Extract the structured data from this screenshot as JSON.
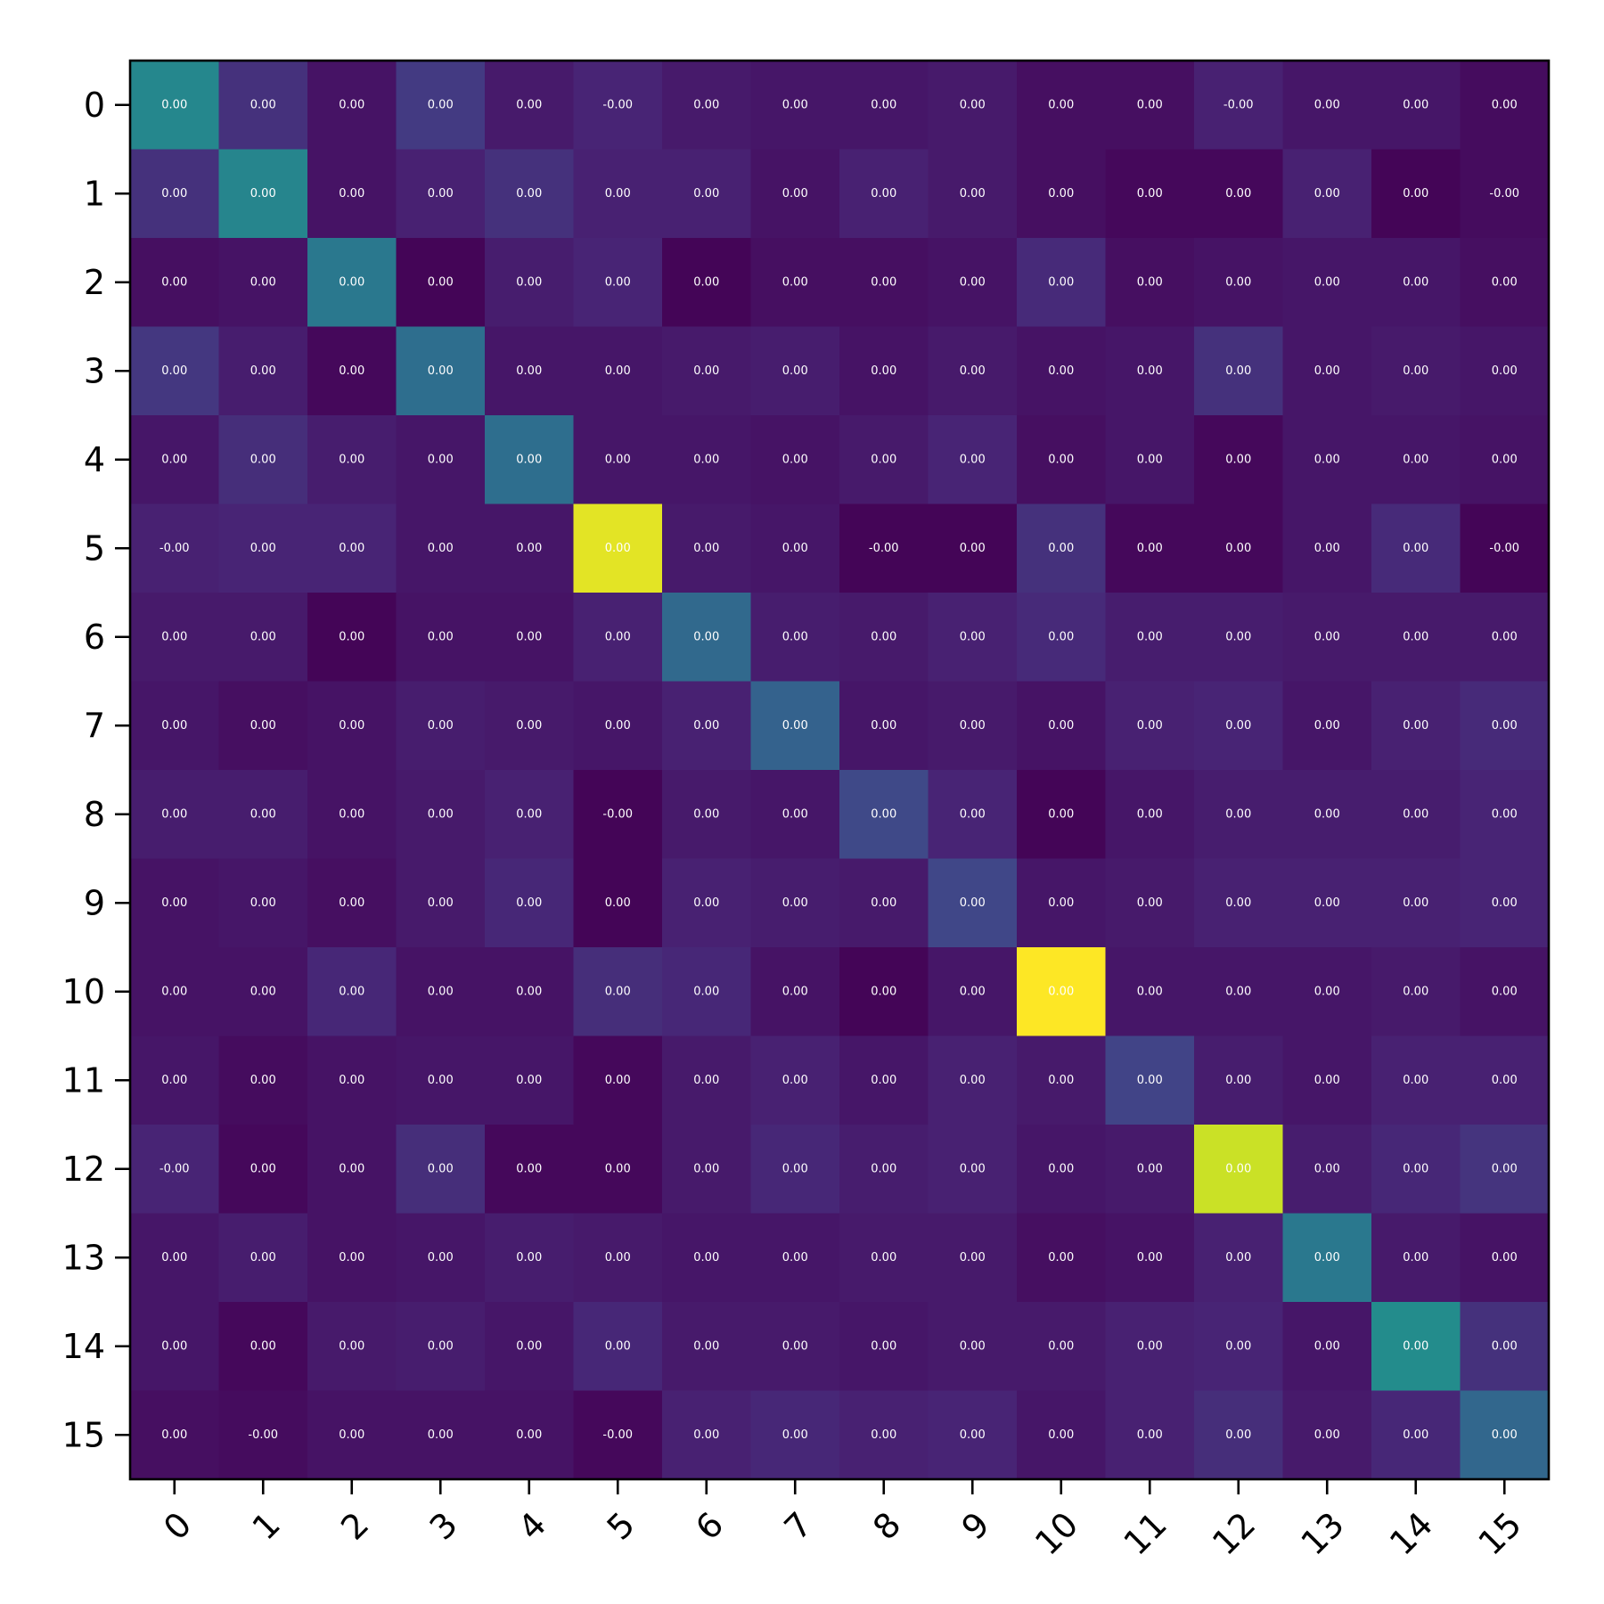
{
  "chart_data": {
    "type": "heatmap",
    "colormap": "viridis",
    "title": "",
    "xlabel": "",
    "ylabel": "",
    "x_tick_labels": [
      "0",
      "1",
      "2",
      "3",
      "4",
      "5",
      "6",
      "7",
      "8",
      "9",
      "10",
      "11",
      "12",
      "13",
      "14",
      "15"
    ],
    "y_tick_labels": [
      "0",
      "1",
      "2",
      "3",
      "4",
      "5",
      "6",
      "7",
      "8",
      "9",
      "10",
      "11",
      "12",
      "13",
      "14",
      "15"
    ],
    "color_range": [
      0,
      1
    ],
    "values": [
      [
        0.46,
        0.14,
        0.05,
        0.17,
        0.07,
        0.1,
        0.07,
        0.06,
        0.06,
        0.07,
        0.04,
        0.04,
        0.09,
        0.06,
        0.06,
        0.03
      ],
      [
        0.14,
        0.45,
        0.05,
        0.09,
        0.14,
        0.09,
        0.09,
        0.05,
        0.09,
        0.07,
        0.04,
        0.02,
        0.02,
        0.09,
        0.01,
        0.03
      ],
      [
        0.04,
        0.05,
        0.4,
        0.01,
        0.08,
        0.1,
        0.01,
        0.04,
        0.04,
        0.05,
        0.12,
        0.04,
        0.05,
        0.06,
        0.06,
        0.04
      ],
      [
        0.16,
        0.08,
        0.02,
        0.36,
        0.06,
        0.06,
        0.07,
        0.08,
        0.05,
        0.07,
        0.05,
        0.06,
        0.14,
        0.06,
        0.07,
        0.06
      ],
      [
        0.06,
        0.13,
        0.08,
        0.06,
        0.36,
        0.06,
        0.06,
        0.05,
        0.07,
        0.1,
        0.04,
        0.06,
        0.02,
        0.06,
        0.06,
        0.05
      ],
      [
        0.09,
        0.1,
        0.1,
        0.06,
        0.06,
        0.96,
        0.07,
        0.06,
        0.01,
        0.01,
        0.14,
        0.02,
        0.02,
        0.06,
        0.12,
        0.01
      ],
      [
        0.07,
        0.07,
        0.01,
        0.05,
        0.05,
        0.09,
        0.34,
        0.08,
        0.07,
        0.09,
        0.12,
        0.08,
        0.08,
        0.07,
        0.07,
        0.07
      ],
      [
        0.06,
        0.04,
        0.05,
        0.08,
        0.07,
        0.06,
        0.09,
        0.31,
        0.06,
        0.07,
        0.05,
        0.09,
        0.1,
        0.06,
        0.09,
        0.12
      ],
      [
        0.08,
        0.08,
        0.05,
        0.07,
        0.09,
        0.01,
        0.07,
        0.06,
        0.22,
        0.1,
        0.01,
        0.06,
        0.08,
        0.08,
        0.08,
        0.1
      ],
      [
        0.05,
        0.06,
        0.04,
        0.07,
        0.11,
        0.01,
        0.09,
        0.08,
        0.07,
        0.21,
        0.06,
        0.07,
        0.09,
        0.09,
        0.09,
        0.1
      ],
      [
        0.05,
        0.05,
        0.11,
        0.05,
        0.05,
        0.13,
        0.11,
        0.05,
        0.01,
        0.06,
        1.0,
        0.06,
        0.06,
        0.06,
        0.07,
        0.05
      ],
      [
        0.06,
        0.03,
        0.05,
        0.06,
        0.06,
        0.02,
        0.07,
        0.09,
        0.06,
        0.09,
        0.07,
        0.2,
        0.08,
        0.06,
        0.09,
        0.09
      ],
      [
        0.1,
        0.02,
        0.05,
        0.13,
        0.02,
        0.02,
        0.07,
        0.11,
        0.08,
        0.09,
        0.06,
        0.07,
        0.92,
        0.08,
        0.11,
        0.15
      ],
      [
        0.06,
        0.08,
        0.05,
        0.06,
        0.08,
        0.07,
        0.06,
        0.06,
        0.07,
        0.07,
        0.04,
        0.05,
        0.09,
        0.4,
        0.07,
        0.05
      ],
      [
        0.06,
        0.02,
        0.07,
        0.08,
        0.06,
        0.11,
        0.07,
        0.07,
        0.06,
        0.07,
        0.07,
        0.09,
        0.1,
        0.06,
        0.48,
        0.14
      ],
      [
        0.04,
        0.03,
        0.05,
        0.05,
        0.05,
        0.02,
        0.09,
        0.11,
        0.09,
        0.1,
        0.06,
        0.09,
        0.13,
        0.07,
        0.11,
        0.33
      ]
    ],
    "cell_labels": [
      [
        "0.00",
        "0.00",
        "0.00",
        "0.00",
        "0.00",
        "-0.00",
        "0.00",
        "0.00",
        "0.00",
        "0.00",
        "0.00",
        "0.00",
        "-0.00",
        "0.00",
        "0.00",
        "0.00"
      ],
      [
        "0.00",
        "0.00",
        "0.00",
        "0.00",
        "0.00",
        "0.00",
        "0.00",
        "0.00",
        "0.00",
        "0.00",
        "0.00",
        "0.00",
        "0.00",
        "0.00",
        "0.00",
        "-0.00"
      ],
      [
        "0.00",
        "0.00",
        "0.00",
        "0.00",
        "0.00",
        "0.00",
        "0.00",
        "0.00",
        "0.00",
        "0.00",
        "0.00",
        "0.00",
        "0.00",
        "0.00",
        "0.00",
        "0.00"
      ],
      [
        "0.00",
        "0.00",
        "0.00",
        "0.00",
        "0.00",
        "0.00",
        "0.00",
        "0.00",
        "0.00",
        "0.00",
        "0.00",
        "0.00",
        "0.00",
        "0.00",
        "0.00",
        "0.00"
      ],
      [
        "0.00",
        "0.00",
        "0.00",
        "0.00",
        "0.00",
        "0.00",
        "0.00",
        "0.00",
        "0.00",
        "0.00",
        "0.00",
        "0.00",
        "0.00",
        "0.00",
        "0.00",
        "0.00"
      ],
      [
        "-0.00",
        "0.00",
        "0.00",
        "0.00",
        "0.00",
        "0.00",
        "0.00",
        "0.00",
        "-0.00",
        "0.00",
        "0.00",
        "0.00",
        "0.00",
        "0.00",
        "0.00",
        "-0.00"
      ],
      [
        "0.00",
        "0.00",
        "0.00",
        "0.00",
        "0.00",
        "0.00",
        "0.00",
        "0.00",
        "0.00",
        "0.00",
        "0.00",
        "0.00",
        "0.00",
        "0.00",
        "0.00",
        "0.00"
      ],
      [
        "0.00",
        "0.00",
        "0.00",
        "0.00",
        "0.00",
        "0.00",
        "0.00",
        "0.00",
        "0.00",
        "0.00",
        "0.00",
        "0.00",
        "0.00",
        "0.00",
        "0.00",
        "0.00"
      ],
      [
        "0.00",
        "0.00",
        "0.00",
        "0.00",
        "0.00",
        "-0.00",
        "0.00",
        "0.00",
        "0.00",
        "0.00",
        "0.00",
        "0.00",
        "0.00",
        "0.00",
        "0.00",
        "0.00"
      ],
      [
        "0.00",
        "0.00",
        "0.00",
        "0.00",
        "0.00",
        "0.00",
        "0.00",
        "0.00",
        "0.00",
        "0.00",
        "0.00",
        "0.00",
        "0.00",
        "0.00",
        "0.00",
        "0.00"
      ],
      [
        "0.00",
        "0.00",
        "0.00",
        "0.00",
        "0.00",
        "0.00",
        "0.00",
        "0.00",
        "0.00",
        "0.00",
        "0.00",
        "0.00",
        "0.00",
        "0.00",
        "0.00",
        "0.00"
      ],
      [
        "0.00",
        "0.00",
        "0.00",
        "0.00",
        "0.00",
        "0.00",
        "0.00",
        "0.00",
        "0.00",
        "0.00",
        "0.00",
        "0.00",
        "0.00",
        "0.00",
        "0.00",
        "0.00"
      ],
      [
        "-0.00",
        "0.00",
        "0.00",
        "0.00",
        "0.00",
        "0.00",
        "0.00",
        "0.00",
        "0.00",
        "0.00",
        "0.00",
        "0.00",
        "0.00",
        "0.00",
        "0.00",
        "0.00"
      ],
      [
        "0.00",
        "0.00",
        "0.00",
        "0.00",
        "0.00",
        "0.00",
        "0.00",
        "0.00",
        "0.00",
        "0.00",
        "0.00",
        "0.00",
        "0.00",
        "0.00",
        "0.00",
        "0.00"
      ],
      [
        "0.00",
        "0.00",
        "0.00",
        "0.00",
        "0.00",
        "0.00",
        "0.00",
        "0.00",
        "0.00",
        "0.00",
        "0.00",
        "0.00",
        "0.00",
        "0.00",
        "0.00",
        "0.00"
      ],
      [
        "0.00",
        "-0.00",
        "0.00",
        "0.00",
        "0.00",
        "-0.00",
        "0.00",
        "0.00",
        "0.00",
        "0.00",
        "0.00",
        "0.00",
        "0.00",
        "0.00",
        "0.00",
        "0.00"
      ]
    ],
    "colors": {
      "cell_label": "#ffffff",
      "axis": "#000000",
      "background": "#ffffff"
    },
    "grid": false,
    "legend": "none"
  }
}
